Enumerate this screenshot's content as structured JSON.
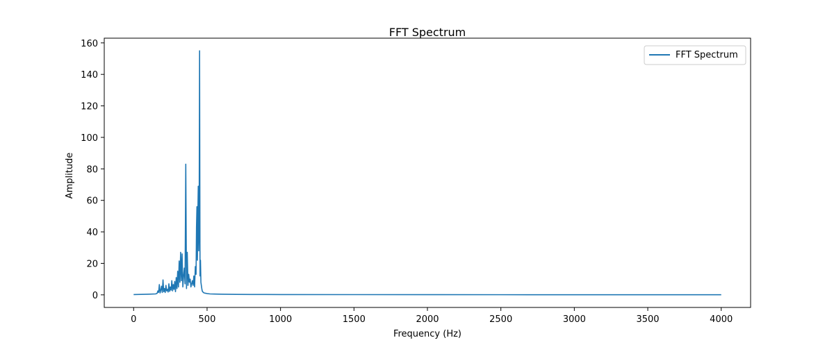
{
  "chart_data": {
    "type": "line",
    "title": "FFT Spectrum",
    "xlabel": "Frequency (Hz)",
    "ylabel": "Amplitude",
    "xlim": [
      -200,
      4200
    ],
    "ylim": [
      -8,
      163
    ],
    "xticks": [
      0,
      500,
      1000,
      1500,
      2000,
      2500,
      3000,
      3500,
      4000
    ],
    "yticks": [
      0,
      20,
      40,
      60,
      80,
      100,
      120,
      140,
      160
    ],
    "grid": false,
    "legend": {
      "position": "top-right",
      "entries": [
        "FFT Spectrum"
      ]
    },
    "series": [
      {
        "name": "FFT Spectrum",
        "color": "#1f77b4",
        "x": [
          0,
          50,
          100,
          150,
          160,
          165,
          170,
          175,
          180,
          185,
          190,
          195,
          200,
          205,
          210,
          215,
          220,
          225,
          230,
          235,
          240,
          245,
          250,
          255,
          260,
          265,
          270,
          275,
          280,
          285,
          290,
          295,
          300,
          305,
          310,
          315,
          320,
          325,
          330,
          335,
          340,
          345,
          350,
          355,
          360,
          365,
          370,
          375,
          380,
          385,
          390,
          395,
          400,
          405,
          410,
          415,
          420,
          425,
          428,
          431,
          434,
          437,
          440,
          443,
          446,
          449,
          452,
          455,
          458,
          461,
          464,
          467,
          470,
          475,
          480,
          490,
          500,
          520,
          550,
          600,
          700,
          800,
          1000,
          1500,
          2000,
          2500,
          3000,
          3500,
          4000
        ],
        "y": [
          0.2,
          0.3,
          0.4,
          0.6,
          1.0,
          2.5,
          1.5,
          6.5,
          1.2,
          3.0,
          5.5,
          1.5,
          9.5,
          2.0,
          4.0,
          1.5,
          6.0,
          2.5,
          3.5,
          1.8,
          7.0,
          2.2,
          5.0,
          3.0,
          9.0,
          2.5,
          6.5,
          3.5,
          8.5,
          2.0,
          11.0,
          4.0,
          15.0,
          5.0,
          21.5,
          8.0,
          27.0,
          9.0,
          26.0,
          5.0,
          12.0,
          17.0,
          7.0,
          83.0,
          4.0,
          27.0,
          6.0,
          13.0,
          8.0,
          10.0,
          5.0,
          7.0,
          9.0,
          6.0,
          12.0,
          5.0,
          18.0,
          13.0,
          43.0,
          56.0,
          22.0,
          50.0,
          69.0,
          28.0,
          45.0,
          155.0,
          12.0,
          22.0,
          8.0,
          6.0,
          4.0,
          2.5,
          2.0,
          1.5,
          1.2,
          1.0,
          0.8,
          0.6,
          0.5,
          0.4,
          0.3,
          0.25,
          0.2,
          0.15,
          0.12,
          0.1,
          0.08,
          0.07,
          0.06
        ]
      }
    ]
  }
}
